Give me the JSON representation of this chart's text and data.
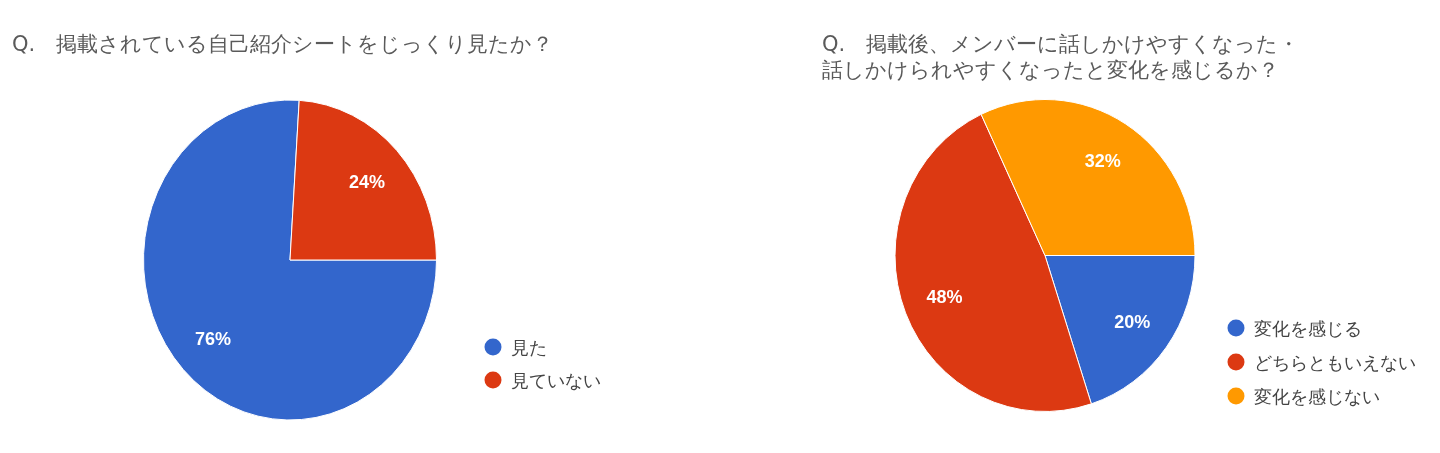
{
  "chart_data": [
    {
      "type": "pie",
      "title": "Q.　掲載されている自己紹介シートをじっくり見たか？",
      "categories": [
        "見た",
        "見ていない"
      ],
      "values": [
        76,
        24
      ],
      "colors": [
        "#3366cc",
        "#dc3912"
      ],
      "value_labels": [
        "76%",
        "24%"
      ],
      "legend": "bottom right"
    },
    {
      "type": "pie",
      "title": "Q.　掲載後、メンバーに話しかけやすくなった・話しかけられやすくなったと変化を感じるか？",
      "categories": [
        "変化を感じる",
        "どちらともいえない",
        "変化を感じない"
      ],
      "values": [
        20,
        48,
        32
      ],
      "colors": [
        "#3366cc",
        "#dc3912",
        "#ff9900"
      ],
      "value_labels": [
        "20%",
        "48%",
        "32%"
      ],
      "legend": "bottom right"
    }
  ]
}
